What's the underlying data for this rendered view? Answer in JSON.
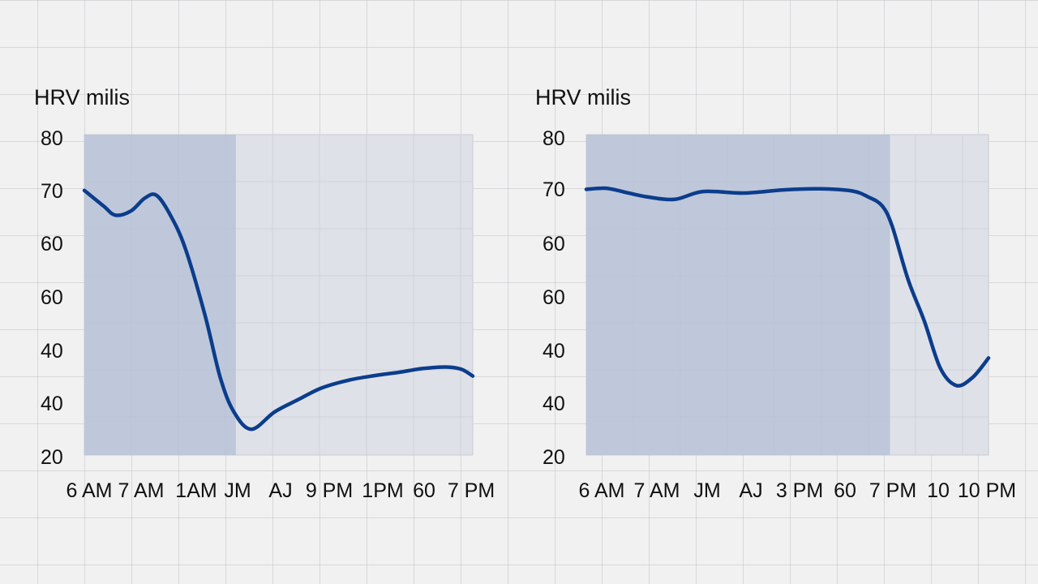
{
  "theme": {
    "plot_bg": "#dfe1e8",
    "area_fill": "#b5c0d6",
    "line_color": "#0b3d8c",
    "grid_color": "#c5c8d0"
  },
  "chart_data": [
    {
      "type": "area",
      "title": "HRV milis",
      "xlabel": "",
      "ylabel": "",
      "y_ticks": [
        "80",
        "70",
        "60",
        "60",
        "40",
        "40",
        "20"
      ],
      "x_ticks": [
        "6 AM",
        "7 AM",
        "1AM",
        "JM",
        "AJ",
        "9 PM",
        "1PM",
        "60",
        "7 PM"
      ],
      "shaded_until_fraction": 0.39,
      "series": [
        {
          "points": [
            [
              0.0,
              70.5
            ],
            [
              0.05,
              67.5
            ],
            [
              0.08,
              65.8
            ],
            [
              0.12,
              66.6
            ],
            [
              0.155,
              69.0
            ],
            [
              0.185,
              69.6
            ],
            [
              0.22,
              66.0
            ],
            [
              0.26,
              59.5
            ],
            [
              0.31,
              47.0
            ],
            [
              0.35,
              35.0
            ],
            [
              0.385,
              28.5
            ],
            [
              0.43,
              25.2
            ],
            [
              0.49,
              28.5
            ],
            [
              0.55,
              30.8
            ],
            [
              0.61,
              33.0
            ],
            [
              0.68,
              34.5
            ],
            [
              0.75,
              35.4
            ],
            [
              0.81,
              36.0
            ],
            [
              0.87,
              36.7
            ],
            [
              0.93,
              37.0
            ],
            [
              0.97,
              36.6
            ],
            [
              1.0,
              35.3
            ]
          ]
        }
      ]
    },
    {
      "type": "area",
      "title": "HRV milis",
      "xlabel": "",
      "ylabel": "",
      "y_ticks": [
        "80",
        "70",
        "60",
        "60",
        "40",
        "40",
        "20"
      ],
      "x_ticks": [
        "6 AM",
        "7 AM",
        "JM",
        "AJ",
        "3 PM",
        "60",
        "7 PM",
        "10",
        "10 PM"
      ],
      "shaded_until_fraction": 0.755,
      "series": [
        {
          "points": [
            [
              0.0,
              70.7
            ],
            [
              0.05,
              70.9
            ],
            [
              0.1,
              70.1
            ],
            [
              0.15,
              69.3
            ],
            [
              0.22,
              68.8
            ],
            [
              0.29,
              70.3
            ],
            [
              0.39,
              70.0
            ],
            [
              0.49,
              70.6
            ],
            [
              0.58,
              70.8
            ],
            [
              0.66,
              70.4
            ],
            [
              0.7,
              69.3
            ],
            [
              0.735,
              67.6
            ],
            [
              0.76,
              63.8
            ],
            [
              0.8,
              53.6
            ],
            [
              0.84,
              45.8
            ],
            [
              0.88,
              36.8
            ],
            [
              0.92,
              33.5
            ],
            [
              0.96,
              35.0
            ],
            [
              1.0,
              38.7
            ]
          ]
        }
      ]
    }
  ]
}
